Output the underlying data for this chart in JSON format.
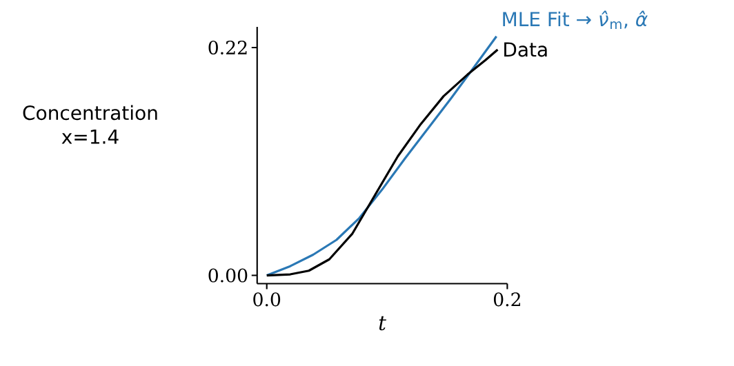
{
  "chart_data": {
    "type": "line",
    "xlabel": "*t*",
    "ylabel": "Concentration x=1.4",
    "xlim": [
      -0.008,
      0.2
    ],
    "ylim": [
      -0.008,
      0.24
    ],
    "xticks": [
      {
        "value": 0,
        "label": "0.0"
      },
      0.2
    ],
    "yticks": [
      {
        "value": 0,
        "label": "0.00"
      },
      0.22
    ],
    "series": [
      {
        "name": "MLE Fit → *ν̂*$_{m}$, *α̂*",
        "color": "#2a78b5",
        "x": [
          0,
          0.0195,
          0.0386,
          0.058,
          0.077,
          0.096,
          0.115,
          0.134,
          0.153,
          0.172,
          0.191
        ],
        "values": [
          0,
          0.0089,
          0.02,
          0.0343,
          0.0554,
          0.083,
          0.113,
          0.1418,
          0.1706,
          0.2005,
          0.2308
        ]
      },
      {
        "name": "Data",
        "color": "#000000",
        "x": [
          0,
          0.0195,
          0.035,
          0.052,
          0.071,
          0.09,
          0.109,
          0.128,
          0.147,
          0.167,
          0.182,
          0.192
        ],
        "values": [
          0,
          0.001,
          0.0045,
          0.0155,
          0.04,
          0.0776,
          0.115,
          0.146,
          0.173,
          0.194,
          0.208,
          0.218
        ]
      }
    ]
  }
}
